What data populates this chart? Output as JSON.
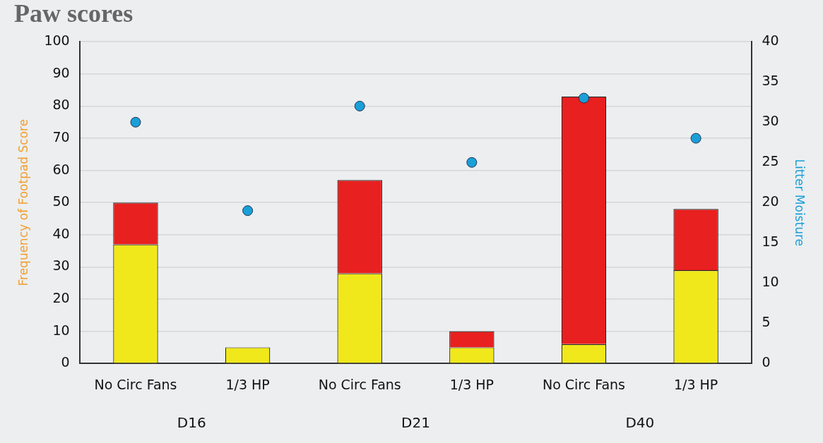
{
  "chart_data": {
    "type": "bar",
    "title": "Paw scores",
    "ylabel": "Frequency of Footpad Score",
    "y2label": "Litter Moisture",
    "categories": [
      "No Circ Fans",
      "1/3 HP",
      "No Circ Fans",
      "1/3 HP",
      "No Circ Fans",
      "1/3 HP"
    ],
    "series": [
      {
        "color": "#f0e81a",
        "values": [
          37,
          5,
          28,
          5,
          6,
          29
        ]
      },
      {
        "color": "#e8201f",
        "values": [
          13,
          0,
          29,
          5,
          77,
          19
        ]
      },
      {
        "type": "scatter",
        "axis": "y2",
        "color": "#1a9fd8",
        "values": [
          30,
          19,
          32,
          25,
          33,
          28
        ]
      }
    ],
    "stacked": true,
    "ylim": [
      0,
      100
    ],
    "yticks": [
      0,
      10,
      20,
      30,
      40,
      50,
      60,
      70,
      80,
      90,
      100
    ],
    "y2lim": [
      0,
      40
    ],
    "y2ticks": [
      0,
      5,
      10,
      15,
      20,
      25,
      30,
      35,
      40
    ],
    "grid": "y",
    "legend": false,
    "marker": "circle",
    "annotations": [
      "D16",
      "D21",
      "D40"
    ]
  }
}
